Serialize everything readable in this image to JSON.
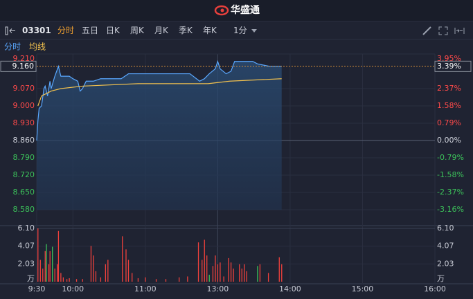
{
  "header": {
    "brand": "华盛通"
  },
  "toolbar": {
    "code": "03301",
    "tabs": [
      "分时",
      "五日",
      "日K",
      "周K",
      "月K",
      "季K",
      "年K"
    ],
    "active_tab": 0,
    "interval": "1分"
  },
  "chart_data": [
    {
      "type": "line",
      "series": [
        {
          "name": "分时",
          "color": "#5aa8ff",
          "x": [
            0,
            1,
            2,
            4,
            6,
            7,
            9,
            11,
            12,
            15,
            18,
            20,
            22,
            27,
            30,
            34,
            36,
            38,
            41,
            47,
            53,
            61,
            70,
            76,
            84,
            93,
            102,
            110,
            119,
            127,
            135,
            139,
            143,
            148,
            150,
            152,
            157,
            161,
            164,
            168,
            172,
            179,
            183,
            193,
            203
          ],
          "values": [
            8.86,
            8.94,
            8.99,
            9.0,
            9.07,
            9.08,
            9.04,
            9.1,
            9.07,
            9.12,
            9.16,
            9.12,
            9.12,
            9.12,
            9.11,
            9.1,
            9.06,
            9.07,
            9.1,
            9.1,
            9.11,
            9.11,
            9.11,
            9.13,
            9.13,
            9.13,
            9.13,
            9.13,
            9.13,
            9.13,
            9.1,
            9.11,
            9.13,
            9.15,
            9.18,
            9.15,
            9.13,
            9.14,
            9.18,
            9.18,
            9.18,
            9.18,
            9.17,
            9.16,
            9.16
          ]
        },
        {
          "name": "均线",
          "color": "#f2c14e",
          "x": [
            1,
            4,
            12,
            20,
            38,
            84,
            142,
            160,
            203
          ],
          "values": [
            9.0,
            9.04,
            9.06,
            9.07,
            9.08,
            9.09,
            9.09,
            9.1,
            9.11
          ]
        }
      ],
      "xlim": [
        0,
        330
      ],
      "xticks": [
        {
          "value": 0,
          "label": "9:30"
        },
        {
          "value": 30,
          "label": "10:00"
        },
        {
          "value": 90,
          "label": "11:00"
        },
        {
          "value": 150,
          "label": "13:00"
        },
        {
          "value": 210,
          "label": "14:00"
        },
        {
          "value": 270,
          "label": "15:00"
        },
        {
          "value": 330,
          "label": "16:00"
        }
      ],
      "ylim": [
        8.58,
        9.21
      ],
      "yticks": [
        {
          "value": 9.21,
          "label": "9.210"
        },
        {
          "value": 9.07,
          "label": "9.070"
        },
        {
          "value": 9.0,
          "label": "9.000"
        },
        {
          "value": 8.93,
          "label": "8.930"
        },
        {
          "value": 8.86,
          "label": "8.860"
        },
        {
          "value": 8.79,
          "label": "8.790"
        },
        {
          "value": 8.72,
          "label": "8.720"
        },
        {
          "value": 8.65,
          "label": "8.650"
        },
        {
          "value": 8.58,
          "label": "8.580"
        }
      ],
      "y2lim": [
        -3.16,
        3.95
      ],
      "y2ticks": [
        {
          "value": 3.95,
          "label": "3.95%"
        },
        {
          "value": 2.37,
          "label": "2.37%"
        },
        {
          "value": 1.58,
          "label": "1.58%"
        },
        {
          "value": 0.79,
          "label": "0.79%"
        },
        {
          "value": 0.0,
          "label": "0.00%"
        },
        {
          "value": -0.79,
          "label": "-0.79%"
        },
        {
          "value": -1.58,
          "label": "-1.58%"
        },
        {
          "value": -2.37,
          "label": "-2.37%"
        },
        {
          "value": -3.16,
          "label": "-3.16%"
        }
      ],
      "prev_close": 8.86,
      "last_price": {
        "value": 9.16,
        "label": "9.160"
      },
      "last_change": {
        "value": 3.39,
        "label": "3.39%"
      },
      "up_color": "#ff4a4a",
      "down_color": "#3cc25a",
      "flat_color": "#d0d3dc",
      "grid": true
    },
    {
      "type": "bar",
      "series": [
        {
          "color": "#f0413c",
          "x": [
            1,
            3,
            5,
            7,
            10,
            11,
            15,
            17,
            18,
            20,
            22,
            25,
            27,
            33,
            38,
            45,
            47,
            49,
            53,
            57,
            59,
            71,
            74,
            76,
            79,
            84,
            90,
            99,
            107,
            118,
            125,
            134,
            137,
            139,
            141,
            146,
            148,
            150,
            152,
            155,
            159,
            161,
            163,
            168,
            170,
            172,
            174,
            185,
            192,
            201,
            203
          ],
          "values": [
            6.1,
            2.5,
            1.5,
            3.5,
            2.0,
            3.5,
            1.5,
            2.0,
            5.8,
            1.0,
            0.5,
            0.3,
            0.4,
            0.3,
            0.3,
            4.1,
            3.0,
            1.2,
            0.5,
            2.0,
            2.5,
            5.2,
            3.7,
            2.5,
            1.0,
            0.4,
            0.5,
            0.3,
            0.3,
            0.5,
            0.6,
            4.5,
            2.5,
            4.8,
            3.0,
            1.8,
            3.0,
            2.0,
            2.2,
            0.6,
            2.7,
            2.2,
            1.5,
            2.0,
            1.5,
            2.0,
            1.2,
            2.0,
            1.0,
            2.8,
            2.0
          ]
        },
        {
          "color": "#3cc25a",
          "x": [
            8,
            13,
            143,
            183
          ],
          "values": [
            4.3,
            4.0,
            0.8,
            1.8
          ]
        }
      ],
      "xlim": [
        0,
        330
      ],
      "ylim": [
        0,
        6.1
      ],
      "yticks": [
        {
          "value": 6.1,
          "label": "6.10"
        },
        {
          "value": 4.07,
          "label": "4.07"
        },
        {
          "value": 2.03,
          "label": "2.03"
        }
      ],
      "unit": "万"
    }
  ]
}
